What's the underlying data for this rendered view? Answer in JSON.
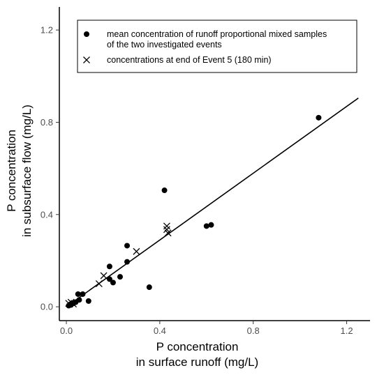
{
  "chart_data": {
    "type": "scatter",
    "xlabel": [
      "P concentration",
      "in surface runoff (mg/L)"
    ],
    "ylabel": [
      "P concentration",
      "in subsurface flow (mg/L)"
    ],
    "xlim": [
      -0.03,
      1.3
    ],
    "ylim": [
      -0.06,
      1.3
    ],
    "xticks": [
      "0.0",
      "0.4",
      "0.8",
      "1.2"
    ],
    "yticks": [
      "0.0",
      "0.4",
      "0.8",
      "1.2"
    ],
    "legend_position": "top-right",
    "grid": false,
    "series": [
      {
        "name": [
          "mean concentration of runoff proportional mixed samples",
          "of the two investigated events"
        ],
        "marker": "circle",
        "points": [
          [
            1.08,
            0.82
          ],
          [
            0.42,
            0.505
          ],
          [
            0.6,
            0.35
          ],
          [
            0.62,
            0.355
          ],
          [
            0.26,
            0.265
          ],
          [
            0.26,
            0.195
          ],
          [
            0.185,
            0.175
          ],
          [
            0.23,
            0.13
          ],
          [
            0.185,
            0.12
          ],
          [
            0.2,
            0.105
          ],
          [
            0.355,
            0.085
          ],
          [
            0.05,
            0.055
          ],
          [
            0.07,
            0.055
          ],
          [
            0.095,
            0.025
          ],
          [
            0.055,
            0.03
          ],
          [
            0.04,
            0.02
          ],
          [
            0.03,
            0.015
          ],
          [
            0.015,
            0.01
          ],
          [
            0.02,
            0.008
          ],
          [
            0.01,
            0.005
          ]
        ]
      },
      {
        "name": "concentrations at end of Event 5 (180 min)",
        "marker": "cross",
        "points": [
          [
            0.43,
            0.35
          ],
          [
            0.43,
            0.335
          ],
          [
            0.435,
            0.32
          ],
          [
            0.3,
            0.24
          ],
          [
            0.16,
            0.135
          ],
          [
            0.14,
            0.1
          ],
          [
            0.02,
            0.02
          ],
          [
            0.01,
            0.015
          ],
          [
            0.03,
            0.012
          ]
        ]
      }
    ],
    "fit_line": {
      "x": [
        0.0,
        1.25
      ],
      "y": [
        0.0,
        0.905
      ]
    }
  }
}
